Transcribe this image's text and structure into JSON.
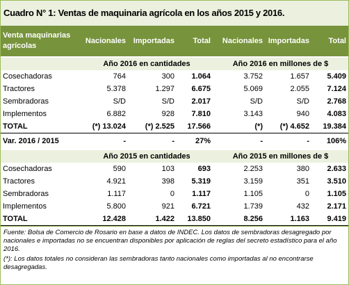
{
  "title": "Cuadro N° 1: Ventas de maquinaria agrícola en los años 2015 y 2016.",
  "header": [
    "Venta maquinarias agrícolas",
    "Nacionales",
    "Importadas",
    "Total",
    "Nacionales",
    "Importadas",
    "Total"
  ],
  "sections": [
    {
      "subheaders": [
        "Año 2016 en cantidades",
        "Año 2016 en millones de $"
      ],
      "rows": [
        [
          "Cosechadoras",
          "764",
          "300",
          "1.064",
          "3.752",
          "1.657",
          "5.409"
        ],
        [
          "Tractores",
          "5.378",
          "1.297",
          "6.675",
          "5.069",
          "2.055",
          "7.124"
        ],
        [
          "Sembradoras",
          "S/D",
          "S/D",
          "2.017",
          "S/D",
          "S/D",
          "2.768"
        ],
        [
          "Implementos",
          "6.882",
          "928",
          "7.810",
          "3.143",
          "940",
          "4.083"
        ],
        [
          "TOTAL",
          "(*) 13.024",
          "(*) 2.525",
          "17.566",
          "(*)",
          "(*) 4.652",
          "19.384"
        ],
        [
          "Var. 2016 / 2015",
          "-",
          "-",
          "27%",
          "-",
          "-",
          "106%"
        ]
      ]
    },
    {
      "subheaders": [
        "Año 2015 en cantidades",
        "Año 2015 en millones de $"
      ],
      "rows": [
        [
          "Cosechadoras",
          "590",
          "103",
          "693",
          "2.253",
          "380",
          "2.633"
        ],
        [
          "Tractores",
          "4.921",
          "398",
          "5.319",
          "3.159",
          "351",
          "3.510"
        ],
        [
          "Sembradoras",
          "1.117",
          "0",
          "1.117",
          "1.105",
          "0",
          "1.105"
        ],
        [
          "Implementos",
          "5.800",
          "921",
          "6.721",
          "1.739",
          "432",
          "2.171"
        ],
        [
          "TOTAL",
          "12.428",
          "1.422",
          "13.850",
          "8.256",
          "1.163",
          "9.419"
        ]
      ]
    }
  ],
  "notes": [
    "Fuente: Bolsa de Comercio de Rosario en base a datos de INDEC. Los datos de sembradoras desagregado por nacionales e importadas no se encuentran disponibles por aplicación de reglas del secreto estadístico para el año 2016.",
    "(*): Los datos totales no consideran las sembradoras tanto nacionales como importadas al no encontrarse desagregadas."
  ]
}
